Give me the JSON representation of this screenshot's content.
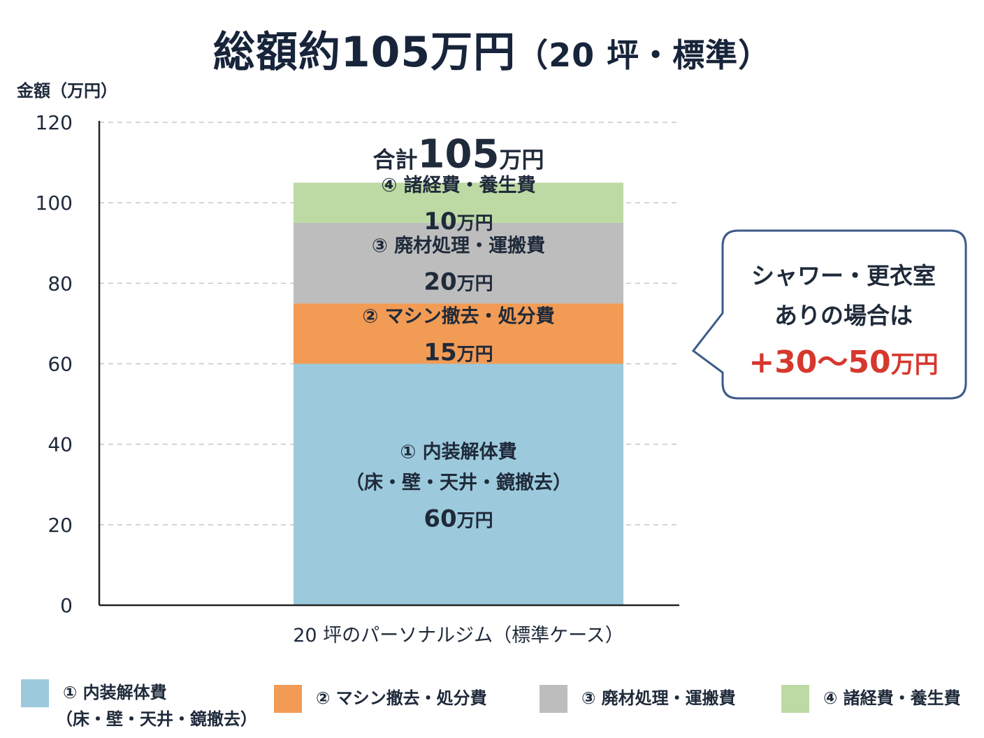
{
  "title": {
    "main": "総額約105万円",
    "sub": "（20 坪・標準）"
  },
  "colors": {
    "seg1": "#9ccadc",
    "seg2": "#f29b54",
    "seg3": "#bdbdbd",
    "seg4": "#bedaa4",
    "axis": "#222222",
    "grid": "#c6c6c6",
    "callout_border": "#3d5a8a",
    "callout_accent": "#d6382e"
  },
  "chart_data": {
    "type": "bar",
    "stacked": true,
    "title": "総額約105万円（20 坪・標準）",
    "ylabel": "金額（万円）",
    "xlabel": "",
    "ylim": [
      0,
      120
    ],
    "yticks": [
      0,
      20,
      40,
      60,
      80,
      100,
      120
    ],
    "grid": true,
    "grid_style": "dashed",
    "categories": [
      "20 坪のパーソナルジム（標準ケース）"
    ],
    "series": [
      {
        "name": "① 内装解体費（床・壁・天井・鏡撤去）",
        "values": [
          60
        ]
      },
      {
        "name": "② マシン撤去・処分費",
        "values": [
          15
        ]
      },
      {
        "name": "③ 廃材処理・運搬費",
        "values": [
          20
        ]
      },
      {
        "name": "④ 諸経費・養生費",
        "values": [
          10
        ]
      }
    ],
    "segment_labels": [
      {
        "lines": [
          "① 内装解体費",
          "（床・壁・天井・鏡撤去）"
        ],
        "value": "60",
        "unit": "万円"
      },
      {
        "lines": [
          "② マシン撤去・処分費"
        ],
        "value": "15",
        "unit": "万円"
      },
      {
        "lines": [
          "③ 廃材処理・運搬費"
        ],
        "value": "20",
        "unit": "万円"
      },
      {
        "lines": [
          "④ 諸経費・養生費"
        ],
        "value": "10",
        "unit": "万円"
      }
    ],
    "total": {
      "prefix": "合計",
      "value": "105",
      "unit": "万円"
    },
    "legend_position": "bottom"
  },
  "callout": {
    "line1": "シャワー・更衣室",
    "line2": "ありの場合は",
    "amount": "+30～50",
    "unit": "万円"
  },
  "legend": [
    {
      "line1": "① 内装解体費",
      "line2": "（床・壁・天井・鏡撤去）"
    },
    {
      "line1": "② マシン撤去・処分費",
      "line2": ""
    },
    {
      "line1": "③ 廃材処理・運搬費",
      "line2": ""
    },
    {
      "line1": "④ 諸経費・養生費",
      "line2": ""
    }
  ]
}
